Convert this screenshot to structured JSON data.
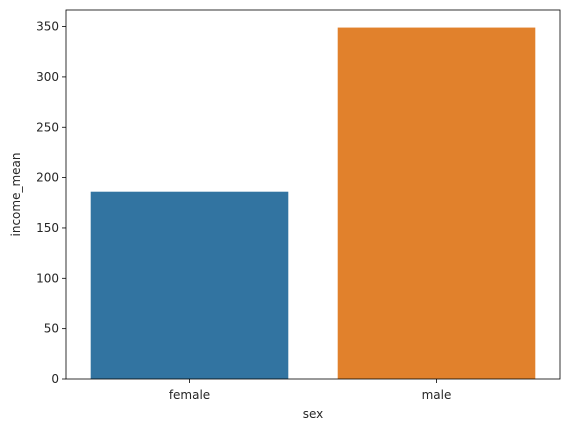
{
  "chart_data": {
    "type": "bar",
    "categories": [
      "female",
      "male"
    ],
    "values": [
      186,
      349
    ],
    "colors": [
      "#3274a1",
      "#e1812c"
    ],
    "xlabel": "sex",
    "ylabel": "income_mean",
    "ylim": [
      0,
      366.45
    ],
    "yticks": [
      0,
      50,
      100,
      150,
      200,
      250,
      300,
      350
    ],
    "grid": false
  }
}
